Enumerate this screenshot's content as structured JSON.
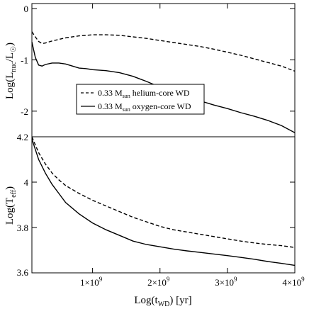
{
  "chart_data": [
    {
      "panel": "top",
      "type": "line",
      "ylabel": {
        "main": "Log(L",
        "sub": "nuc",
        "mid": "/L",
        "sub2": "☉",
        "end": ")"
      },
      "ylim": [
        -2.5,
        0.1
      ],
      "yticks": [
        0,
        -1,
        -2
      ],
      "ytick_labels": [
        "0",
        "-1",
        "-2"
      ],
      "xlim": [
        100000000,
        4000000000
      ],
      "grid": false,
      "legend": {
        "placement": "lower-left",
        "entries": [
          {
            "mass": "0.33 M",
            "sub": "sun",
            "text": " helium-core WD",
            "style": "dashed"
          },
          {
            "mass": "0.33 M",
            "sub": "sun",
            "text": " oxygen-core WD",
            "style": "solid"
          }
        ]
      },
      "series": [
        {
          "name": "0.33 Msun helium-core WD",
          "style": "dashed",
          "x": [
            100000000,
            150000000,
            200000000,
            250000000,
            300000000,
            400000000,
            500000000,
            600000000,
            800000000,
            1000000000,
            1200000000,
            1400000000,
            1600000000,
            1800000000,
            2000000000,
            2200000000,
            2400000000,
            2600000000,
            2800000000,
            3000000000,
            3200000000,
            3400000000,
            3600000000,
            3800000000,
            4000000000
          ],
          "y": [
            -0.45,
            -0.55,
            -0.64,
            -0.68,
            -0.67,
            -0.63,
            -0.6,
            -0.57,
            -0.53,
            -0.51,
            -0.51,
            -0.52,
            -0.55,
            -0.58,
            -0.62,
            -0.66,
            -0.7,
            -0.74,
            -0.79,
            -0.85,
            -0.91,
            -0.98,
            -1.05,
            -1.12,
            -1.22
          ]
        },
        {
          "name": "0.33 Msun oxygen-core WD",
          "style": "solid",
          "x": [
            100000000,
            150000000,
            200000000,
            250000000,
            300000000,
            400000000,
            500000000,
            600000000,
            700000000,
            800000000,
            900000000,
            1000000000,
            1200000000,
            1400000000,
            1600000000,
            1700000000,
            1800000000,
            2000000000,
            2200000000,
            2400000000,
            2600000000,
            2800000000,
            3000000000,
            3200000000,
            3400000000,
            3600000000,
            3800000000,
            4000000000
          ],
          "y": [
            -0.65,
            -0.95,
            -1.1,
            -1.12,
            -1.09,
            -1.06,
            -1.06,
            -1.08,
            -1.12,
            -1.16,
            -1.17,
            -1.19,
            -1.21,
            -1.25,
            -1.32,
            -1.37,
            -1.42,
            -1.53,
            -1.62,
            -1.71,
            -1.8,
            -1.88,
            -1.95,
            -2.03,
            -2.1,
            -2.18,
            -2.28,
            -2.42
          ]
        }
      ]
    },
    {
      "panel": "bottom",
      "type": "line",
      "ylabel": {
        "main": "Log(T",
        "sub": "eff",
        "end": ")"
      },
      "ylim": [
        3.6,
        4.2
      ],
      "yticks": [
        3.6,
        3.8,
        4,
        4.2
      ],
      "ytick_labels": [
        "3.6",
        "3.8",
        "4",
        "4.2"
      ],
      "xlabel": {
        "main": "Log(t",
        "sub": "WD",
        "end": ") [yr]"
      },
      "xlim": [
        100000000,
        4000000000
      ],
      "xticks": [
        1000000000,
        2000000000,
        3000000000,
        4000000000
      ],
      "xtick_labels": [
        {
          "mant": "1×10",
          "exp": "9"
        },
        {
          "mant": "2×10",
          "exp": "9"
        },
        {
          "mant": "3×10",
          "exp": "9"
        },
        {
          "mant": "4×10",
          "exp": "9"
        }
      ],
      "grid": false,
      "series": [
        {
          "name": "0.33 Msun helium-core WD",
          "style": "dashed",
          "x": [
            100000000,
            200000000,
            300000000,
            400000000,
            500000000,
            600000000,
            800000000,
            1000000000,
            1200000000,
            1400000000,
            1600000000,
            1800000000,
            2000000000,
            2200000000,
            2400000000,
            2600000000,
            2800000000,
            3000000000,
            3200000000,
            3400000000,
            3600000000,
            3800000000,
            4000000000
          ],
          "y": [
            4.2,
            4.13,
            4.08,
            4.04,
            4.01,
            3.985,
            3.95,
            3.92,
            3.895,
            3.87,
            3.845,
            3.825,
            3.805,
            3.79,
            3.78,
            3.77,
            3.76,
            3.75,
            3.74,
            3.732,
            3.725,
            3.72,
            3.712
          ]
        },
        {
          "name": "0.33 Msun oxygen-core WD",
          "style": "solid",
          "x": [
            100000000,
            200000000,
            300000000,
            400000000,
            500000000,
            600000000,
            800000000,
            1000000000,
            1200000000,
            1400000000,
            1600000000,
            1800000000,
            2000000000,
            2200000000,
            2400000000,
            2600000000,
            2800000000,
            3000000000,
            3200000000,
            3400000000,
            3600000000,
            3800000000,
            4000000000
          ],
          "y": [
            4.19,
            4.1,
            4.04,
            3.99,
            3.95,
            3.91,
            3.86,
            3.82,
            3.79,
            3.765,
            3.74,
            3.725,
            3.715,
            3.705,
            3.697,
            3.69,
            3.683,
            3.676,
            3.668,
            3.66,
            3.65,
            3.642,
            3.633
          ]
        }
      ]
    }
  ]
}
